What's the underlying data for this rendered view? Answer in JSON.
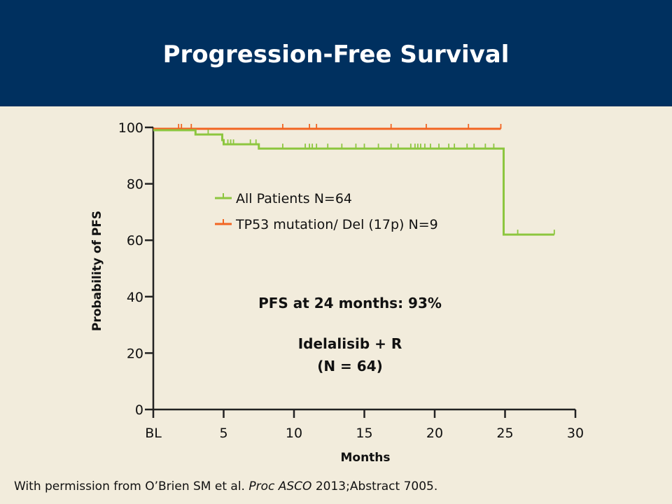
{
  "slide": {
    "title": "Progression-Free Survival",
    "citation_prefix": "With permission from O’Brien SM et al. ",
    "citation_journal": "Proc ASCO",
    "citation_suffix": " 2013;Abstract 7005."
  },
  "colors": {
    "header_bg": "#00305f",
    "background": "#f2ecdc",
    "all_patients": "#8dc63f",
    "tp53": "#f26522"
  },
  "chart_data": {
    "type": "line",
    "subtype": "kaplan-meier",
    "title": "",
    "xlabel": "Months",
    "ylabel": "Probability of PFS",
    "xlim": [
      0,
      30
    ],
    "ylim": [
      0,
      100
    ],
    "x_ticks": [
      {
        "value": 0,
        "label": "BL"
      },
      {
        "value": 5,
        "label": "5"
      },
      {
        "value": 10,
        "label": "10"
      },
      {
        "value": 15,
        "label": "15"
      },
      {
        "value": 20,
        "label": "20"
      },
      {
        "value": 25,
        "label": "25"
      },
      {
        "value": 30,
        "label": "30"
      }
    ],
    "y_ticks": [
      {
        "value": 0,
        "label": "0"
      },
      {
        "value": 20,
        "label": "20"
      },
      {
        "value": 40,
        "label": "40"
      },
      {
        "value": 60,
        "label": "60"
      },
      {
        "value": 80,
        "label": "80"
      },
      {
        "value": 100,
        "label": "100"
      }
    ],
    "series": [
      {
        "name": "All Patients N=64",
        "color": "#8dc63f",
        "steps": [
          [
            0,
            99
          ],
          [
            3,
            97.5
          ],
          [
            4.9,
            95.5
          ],
          [
            5,
            94
          ],
          [
            7.5,
            92.5
          ],
          [
            24.8,
            92.5
          ],
          [
            24.9,
            62
          ],
          [
            28.5,
            62
          ]
        ],
        "censored": [
          {
            "x": 3.9,
            "y": 97.5
          },
          {
            "x": 5.3,
            "y": 94
          },
          {
            "x": 5.5,
            "y": 94
          },
          {
            "x": 5.7,
            "y": 94
          },
          {
            "x": 6.9,
            "y": 94
          },
          {
            "x": 7.3,
            "y": 94
          },
          {
            "x": 9.2,
            "y": 92.5
          },
          {
            "x": 10.8,
            "y": 92.5
          },
          {
            "x": 11.1,
            "y": 92.5
          },
          {
            "x": 11.3,
            "y": 92.5
          },
          {
            "x": 11.6,
            "y": 92.5
          },
          {
            "x": 12.4,
            "y": 92.5
          },
          {
            "x": 13.4,
            "y": 92.5
          },
          {
            "x": 14.4,
            "y": 92.5
          },
          {
            "x": 15.0,
            "y": 92.5
          },
          {
            "x": 16.0,
            "y": 92.5
          },
          {
            "x": 16.9,
            "y": 92.5
          },
          {
            "x": 17.4,
            "y": 92.5
          },
          {
            "x": 18.3,
            "y": 92.5
          },
          {
            "x": 18.6,
            "y": 92.5
          },
          {
            "x": 18.8,
            "y": 92.5
          },
          {
            "x": 19.0,
            "y": 92.5
          },
          {
            "x": 19.3,
            "y": 92.5
          },
          {
            "x": 19.7,
            "y": 92.5
          },
          {
            "x": 20.3,
            "y": 92.5
          },
          {
            "x": 21.0,
            "y": 92.5
          },
          {
            "x": 21.4,
            "y": 92.5
          },
          {
            "x": 22.3,
            "y": 92.5
          },
          {
            "x": 22.8,
            "y": 92.5
          },
          {
            "x": 23.6,
            "y": 92.5
          },
          {
            "x": 24.2,
            "y": 92.5
          },
          {
            "x": 25.9,
            "y": 62
          },
          {
            "x": 28.5,
            "y": 62
          }
        ]
      },
      {
        "name": "TP53 mutation/ Del (17p) N=9",
        "color": "#f26522",
        "steps": [
          [
            0,
            99.5
          ],
          [
            24.7,
            99.5
          ]
        ],
        "censored": [
          {
            "x": 1.8,
            "y": 99.5
          },
          {
            "x": 2.0,
            "y": 99.5
          },
          {
            "x": 2.7,
            "y": 99.5
          },
          {
            "x": 9.2,
            "y": 99.5
          },
          {
            "x": 11.1,
            "y": 99.5
          },
          {
            "x": 11.6,
            "y": 99.5
          },
          {
            "x": 16.9,
            "y": 99.5
          },
          {
            "x": 19.4,
            "y": 99.5
          },
          {
            "x": 22.4,
            "y": 99.5
          },
          {
            "x": 24.7,
            "y": 99.5
          }
        ]
      }
    ],
    "legend_position": "upper-middle",
    "grid": false,
    "annotations": [
      "PFS at 24 months: 93%",
      "Idelalisib + R",
      "(N = 64)"
    ]
  }
}
